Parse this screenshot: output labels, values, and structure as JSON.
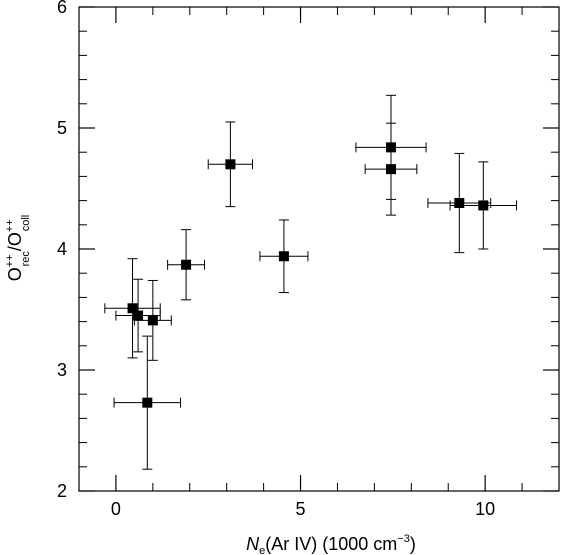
{
  "chart_data": {
    "type": "scatter",
    "title": "",
    "xlabel": {
      "prefix_italic": "N",
      "prefix_sub": "e",
      "rest": "(Ar IV) (1000 cm",
      "sup": "−3",
      "close": ")"
    },
    "ylabel": {
      "base1": "O",
      "sup1": "++",
      "sub1": "rec",
      "slash": "/O",
      "sup2": "++",
      "sub2": "coll"
    },
    "xlim": [
      -1,
      12
    ],
    "ylim": [
      2,
      6
    ],
    "x_ticks": [
      0,
      5,
      10
    ],
    "x_tick_labels": [
      "0",
      "5",
      "10"
    ],
    "y_ticks": [
      2,
      3,
      4,
      5,
      6
    ],
    "y_tick_labels": [
      "2",
      "3",
      "4",
      "5",
      "6"
    ],
    "x_minor_step": 1,
    "y_minor_step": 0.2,
    "grid": false,
    "marker": "filled-square",
    "points": [
      {
        "x": 0.45,
        "y": 3.51,
        "xerr": 0.75,
        "yerr": 0.41
      },
      {
        "x": 0.6,
        "y": 3.45,
        "xerr": 0.6,
        "yerr": 0.3
      },
      {
        "x": 1.0,
        "y": 3.41,
        "xerr": 0.5,
        "yerr": 0.33
      },
      {
        "x": 0.85,
        "y": 2.73,
        "xerr": 0.9,
        "yerr": 0.55
      },
      {
        "x": 1.9,
        "y": 3.87,
        "xerr": 0.5,
        "yerr": 0.29
      },
      {
        "x": 3.1,
        "y": 4.7,
        "xerr": 0.6,
        "yerr": 0.35
      },
      {
        "x": 4.55,
        "y": 3.94,
        "xerr": 0.65,
        "yerr": 0.3
      },
      {
        "x": 7.45,
        "y": 4.84,
        "xerr": 0.95,
        "yerr": 0.43
      },
      {
        "x": 7.45,
        "y": 4.66,
        "xerr": 0.7,
        "yerr": 0.38
      },
      {
        "x": 9.3,
        "y": 4.38,
        "xerr": 0.85,
        "yerr": 0.41
      },
      {
        "x": 9.95,
        "y": 4.36,
        "xerr": 0.9,
        "yerr": 0.36
      }
    ]
  }
}
